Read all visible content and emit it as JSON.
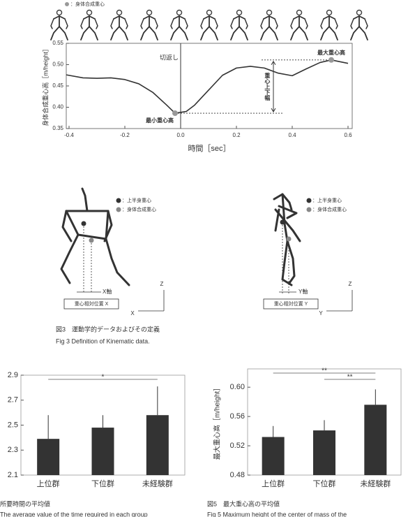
{
  "chart_data": [
    {
      "type": "line",
      "y_label": "身体合成重心高［m/height］",
      "x_label": "時間［sec］",
      "x": [
        -0.41,
        -0.35,
        -0.3,
        -0.25,
        -0.2,
        -0.15,
        -0.1,
        -0.05,
        -0.02,
        0.02,
        0.05,
        0.1,
        0.15,
        0.2,
        0.25,
        0.3,
        0.35,
        0.4,
        0.45,
        0.5,
        0.54,
        0.6
      ],
      "series": [
        {
          "name": "：身体合成重心",
          "color": "#333333",
          "values": [
            0.476,
            0.469,
            0.468,
            0.469,
            0.465,
            0.455,
            0.435,
            0.405,
            0.386,
            0.39,
            0.405,
            0.44,
            0.475,
            0.492,
            0.496,
            0.492,
            0.48,
            0.474,
            0.49,
            0.505,
            0.511,
            0.503
          ]
        }
      ],
      "xlim": [
        -0.41,
        0.615
      ],
      "ylim": [
        0.35,
        0.55
      ],
      "xticks": [
        -0.4,
        -0.2,
        {
          "value": 0,
          "label": "0.0"
        },
        0.2,
        0.4,
        0.6
      ],
      "yticks": [
        0.35,
        {
          "value": 0.4,
          "label": "0.40"
        },
        0.45,
        {
          "value": 0.5,
          "label": "0.50"
        },
        0.55
      ],
      "vline": {
        "label": "切返し",
        "x": 0
      },
      "markers": [
        {
          "label": "最小重心高",
          "x": -0.02,
          "y": 0.386,
          "color": "#999999"
        },
        {
          "label": "最大重心高",
          "x": 0.54,
          "y": 0.511,
          "color": "#999999"
        }
      ],
      "range_label": "重心上下幅"
    },
    {
      "type": "bar",
      "categories": [
        "上位群",
        "下位群",
        "未経験群"
      ],
      "values": [
        2.39,
        2.48,
        2.58
      ],
      "errors": [
        0.19,
        0.1,
        0.23
      ],
      "color": "#333333",
      "ylim": [
        2.1,
        2.9
      ],
      "yticks": [
        2.1,
        2.3,
        2.5,
        2.7,
        2.9
      ],
      "significance": [
        {
          "label": "*",
          "from": 0,
          "to": 2
        }
      ],
      "caption": "所要時間の平均値",
      "caption_en": "The average value of the time required in each group"
    },
    {
      "type": "bar",
      "y_label": "最大重心高［m/height］",
      "categories": [
        "上位群",
        "下位群",
        "未経験群"
      ],
      "values": [
        0.532,
        0.541,
        0.576
      ],
      "errors": [
        0.015,
        0.014,
        0.021
      ],
      "color": "#333333",
      "ylim": [
        0.48,
        0.625
      ],
      "yticks": [
        0.48,
        0.52,
        0.56,
        {
          "value": 0.6,
          "label": "0.60"
        }
      ],
      "significance": [
        {
          "label": "**",
          "from": 0,
          "to": 2
        },
        {
          "label": "**",
          "from": 1,
          "to": 2
        }
      ],
      "caption": "図5　最大重心高の平均値",
      "caption_en": "Fig 5 Maximum height of the center of mass of the"
    }
  ],
  "figure3": {
    "legend": [
      "：上半身重心",
      "：身体合成重心"
    ],
    "x_axis": "X軸",
    "y_axis": "Y軸",
    "box_x": "重心相対位置 X",
    "box_y": "重心相対位置 Y",
    "axis_z": "Z",
    "axis_x": "X",
    "axis_y": "Y",
    "caption": "図3　運動学的データおよびその定義",
    "caption_en": "Fig 3 Definition of Kinematic data."
  }
}
